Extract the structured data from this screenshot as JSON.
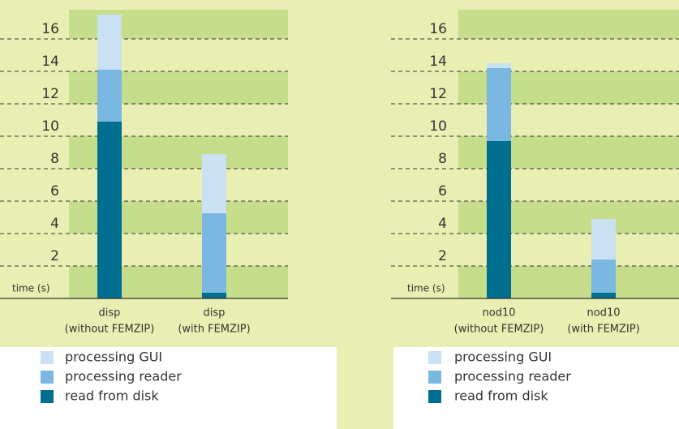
{
  "chart_data": [
    {
      "type": "bar",
      "stacked": true,
      "y_label": "time (s)",
      "categories": [
        [
          "disp",
          "(without FEMZIP)"
        ],
        [
          "disp",
          "(with FEMZIP)"
        ]
      ],
      "series": [
        {
          "name": "read from disk",
          "color": "#006e8f",
          "values": [
            10.9,
            0.35
          ]
        },
        {
          "name": "processing reader",
          "color": "#7ab8e2",
          "values": [
            3.2,
            4.9
          ]
        },
        {
          "name": "processing GUI",
          "color": "#c9e1f3",
          "values": [
            3.4,
            3.65
          ]
        }
      ],
      "ylim": [
        0,
        17.8
      ],
      "yticks": [
        2,
        4,
        6,
        8,
        10,
        12,
        14,
        16
      ],
      "grid": true
    },
    {
      "type": "bar",
      "stacked": true,
      "y_label": "time (s)",
      "categories": [
        [
          "nod10",
          "(without FEMZIP)"
        ],
        [
          "nod10",
          "(with FEMZIP)"
        ]
      ],
      "series": [
        {
          "name": "read from disk",
          "color": "#006e8f",
          "values": [
            9.7,
            0.35
          ]
        },
        {
          "name": "processing reader",
          "color": "#7ab8e2",
          "values": [
            4.5,
            2.05
          ]
        },
        {
          "name": "processing GUI",
          "color": "#c9e1f3",
          "values": [
            0.3,
            2.5
          ]
        }
      ],
      "ylim": [
        0,
        17.8
      ],
      "yticks": [
        2,
        4,
        6,
        8,
        10,
        12,
        14,
        16
      ],
      "grid": true
    }
  ]
}
